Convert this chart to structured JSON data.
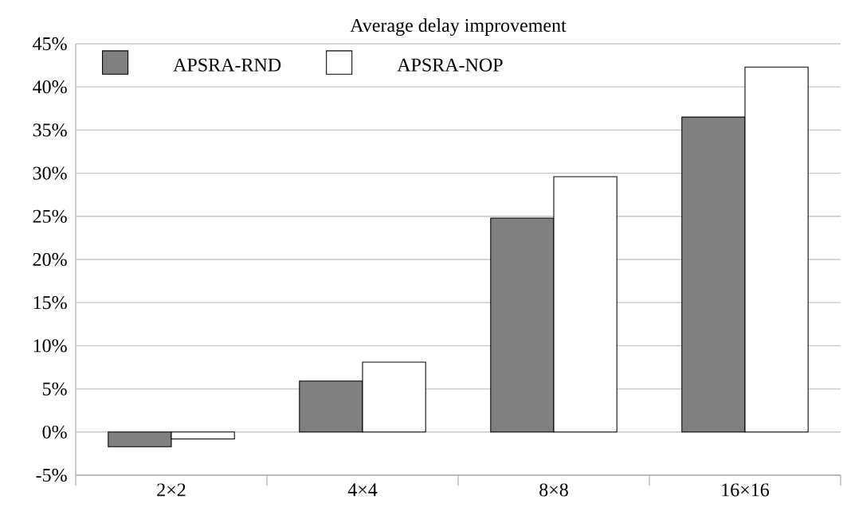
{
  "chart_data": {
    "type": "bar",
    "title": "Average delay improvement",
    "categories": [
      "2×2",
      "4×4",
      "8×8",
      "16×16"
    ],
    "series": [
      {
        "name": "APSRA-RND",
        "color": "#808080",
        "values": [
          -1.7,
          5.9,
          24.8,
          36.5
        ]
      },
      {
        "name": "APSRA-NOP",
        "color": "#ffffff",
        "values": [
          -0.8,
          8.1,
          29.6,
          42.3
        ]
      }
    ],
    "ylim": [
      -5,
      45
    ],
    "yticks": [
      {
        "value": -5,
        "label": "-5%"
      },
      {
        "value": 0,
        "label": "0%"
      },
      {
        "value": 5,
        "label": "5%"
      },
      {
        "value": 10,
        "label": "10%"
      },
      {
        "value": 15,
        "label": "15%"
      },
      {
        "value": 20,
        "label": "20%"
      },
      {
        "value": 25,
        "label": "25%"
      },
      {
        "value": 30,
        "label": "30%"
      },
      {
        "value": 35,
        "label": "35%"
      },
      {
        "value": 40,
        "label": "40%"
      },
      {
        "value": 45,
        "label": "45%"
      }
    ],
    "grid": "y",
    "legend": "top left"
  }
}
